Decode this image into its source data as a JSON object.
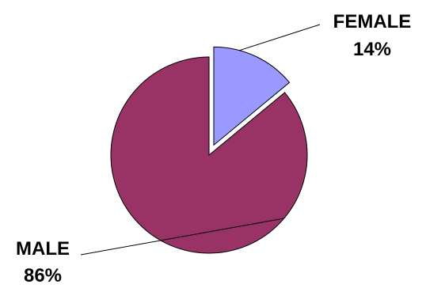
{
  "chart_data": {
    "type": "pie",
    "title": "",
    "exploded_slice": "FEMALE",
    "start_angle_deg": 0,
    "direction": "clockwise",
    "slices": [
      {
        "name": "FEMALE",
        "value": 14,
        "label": "14%",
        "color": "#9999ff"
      },
      {
        "name": "MALE",
        "value": 86,
        "label": "86%",
        "color": "#993366"
      }
    ],
    "outline_color": "#000000",
    "leader_line_color": "#000000"
  }
}
